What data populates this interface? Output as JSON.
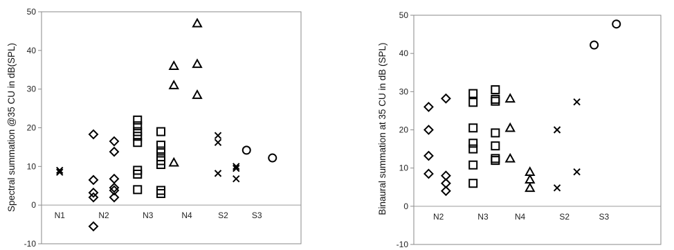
{
  "chart_data": [
    {
      "type": "scatter",
      "ylabel": "Spectral summation @35 CU in dB(SPL)",
      "ylim": [
        -10,
        50
      ],
      "yticks": [
        -10,
        0,
        10,
        20,
        30,
        40,
        50
      ],
      "xlim": [
        0,
        10
      ],
      "categories": [
        {
          "label": "N1",
          "x": 0.7
        },
        {
          "label": "N2",
          "x": 2.4
        },
        {
          "label": "N3",
          "x": 4.1
        },
        {
          "label": "N4",
          "x": 5.6
        },
        {
          "label": "S2",
          "x": 7.0
        },
        {
          "label": "S3",
          "x": 8.3
        }
      ],
      "grid": false,
      "series": [
        {
          "marker": "x",
          "points": [
            [
              0.7,
              9.0
            ],
            [
              0.7,
              8.5
            ]
          ]
        },
        {
          "marker": "diamond",
          "points": [
            [
              2.0,
              18.3
            ],
            [
              2.0,
              6.5
            ],
            [
              2.0,
              3.2
            ],
            [
              2.0,
              2.0
            ],
            [
              2.0,
              -5.5
            ],
            [
              2.8,
              16.5
            ],
            [
              2.8,
              13.8
            ],
            [
              2.8,
              6.8
            ],
            [
              2.8,
              4.5
            ],
            [
              2.8,
              3.8
            ],
            [
              2.8,
              2.0
            ]
          ]
        },
        {
          "marker": "square",
          "points": [
            [
              3.7,
              22.0
            ],
            [
              3.7,
              20.5
            ],
            [
              3.7,
              19.0
            ],
            [
              3.7,
              17.8
            ],
            [
              3.7,
              16.2
            ],
            [
              3.7,
              9.0
            ],
            [
              3.7,
              8.0
            ],
            [
              3.7,
              4.0
            ],
            [
              4.6,
              19.0
            ],
            [
              4.6,
              15.5
            ],
            [
              4.6,
              14.0
            ],
            [
              4.6,
              12.5
            ],
            [
              4.6,
              11.5
            ],
            [
              4.6,
              10.5
            ],
            [
              4.6,
              3.8
            ],
            [
              4.6,
              3.0
            ]
          ]
        },
        {
          "marker": "triangle",
          "points": [
            [
              5.1,
              36.0
            ],
            [
              5.1,
              31.0
            ],
            [
              5.1,
              11.0
            ],
            [
              6.0,
              47.0
            ],
            [
              6.0,
              36.5
            ],
            [
              6.0,
              28.5
            ]
          ]
        },
        {
          "marker": "x",
          "points": [
            [
              6.8,
              18.0
            ],
            [
              6.8,
              16.2
            ],
            [
              6.8,
              8.2
            ],
            [
              7.5,
              10.0
            ],
            [
              7.5,
              9.5
            ],
            [
              7.5,
              6.8
            ]
          ]
        },
        {
          "marker": "circle",
          "points": [
            [
              7.9,
              14.2
            ],
            [
              8.9,
              12.2
            ]
          ]
        }
      ]
    },
    {
      "type": "scatter",
      "ylabel": "Binaural summation at 35 CU in dB (SPL)",
      "ylim": [
        -10,
        50
      ],
      "yticks": [
        -10,
        0,
        10,
        20,
        30,
        40,
        50
      ],
      "xlim": [
        0,
        10
      ],
      "categories": [
        {
          "label": "N2",
          "x": 1.0
        },
        {
          "label": "N3",
          "x": 2.8
        },
        {
          "label": "N4",
          "x": 4.3
        },
        {
          "label": "S2",
          "x": 6.1
        },
        {
          "label": "S3",
          "x": 7.7
        }
      ],
      "grid": false,
      "series": [
        {
          "marker": "diamond",
          "points": [
            [
              0.6,
              26.0
            ],
            [
              0.6,
              20.0
            ],
            [
              0.6,
              13.2
            ],
            [
              0.6,
              8.5
            ],
            [
              1.3,
              28.2
            ],
            [
              1.3,
              8.0
            ],
            [
              1.3,
              6.0
            ],
            [
              1.3,
              4.0
            ]
          ]
        },
        {
          "marker": "square",
          "points": [
            [
              2.4,
              29.5
            ],
            [
              2.4,
              27.2
            ],
            [
              2.4,
              20.5
            ],
            [
              2.4,
              16.5
            ],
            [
              2.4,
              15.0
            ],
            [
              2.4,
              10.8
            ],
            [
              2.4,
              6.0
            ],
            [
              3.3,
              30.5
            ],
            [
              3.3,
              28.0
            ],
            [
              3.3,
              27.5
            ],
            [
              3.3,
              19.2
            ],
            [
              3.3,
              15.8
            ],
            [
              3.3,
              12.5
            ],
            [
              3.3,
              12.0
            ]
          ]
        },
        {
          "marker": "triangle",
          "points": [
            [
              3.9,
              28.2
            ],
            [
              3.9,
              20.5
            ],
            [
              3.9,
              12.5
            ],
            [
              4.7,
              9.0
            ],
            [
              4.7,
              7.0
            ],
            [
              4.7,
              4.8
            ]
          ]
        },
        {
          "marker": "x",
          "points": [
            [
              5.8,
              20.0
            ],
            [
              5.8,
              4.8
            ],
            [
              6.6,
              27.3
            ],
            [
              6.6,
              9.0
            ]
          ]
        },
        {
          "marker": "circle",
          "points": [
            [
              7.3,
              42.2
            ],
            [
              8.2,
              47.7
            ]
          ]
        }
      ]
    }
  ]
}
